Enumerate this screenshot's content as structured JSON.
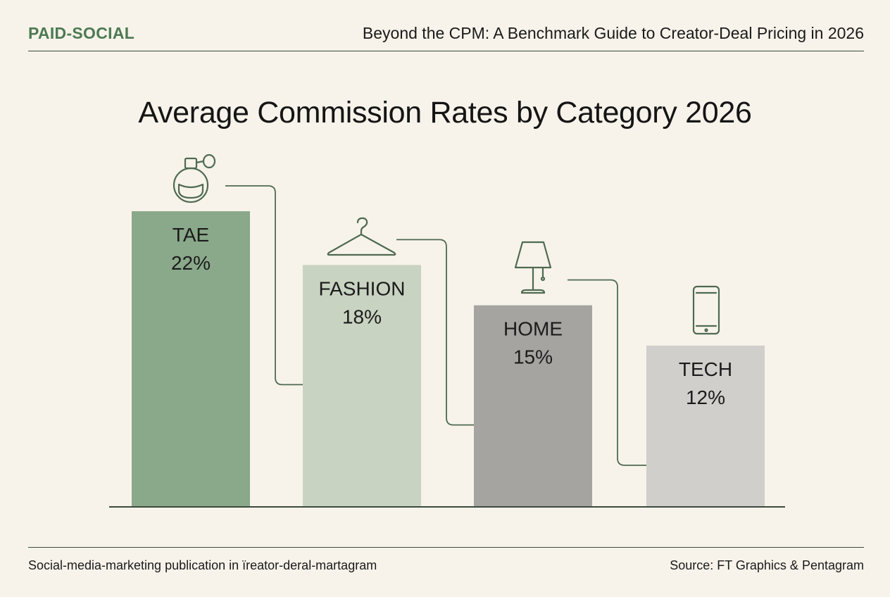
{
  "header": {
    "kicker": "PAID-SOCIAL",
    "headline": "Beyond the CPM: A Benchmark Guide to Creator-Deal Pricing in 2026"
  },
  "chart_data": {
    "type": "bar",
    "title": "Average Commission Rates by Category 2026",
    "categories": [
      "TAE",
      "FASHION",
      "HOME",
      "TECH"
    ],
    "values": [
      22,
      18,
      15,
      12
    ],
    "value_labels": [
      "22%",
      "18%",
      "15%",
      "12%"
    ],
    "value_unit": "%",
    "ylim": [
      0,
      22
    ],
    "grid": false,
    "legend": "none",
    "bar_colors": [
      "#8aa98a",
      "#c9d3c2",
      "#a5a4a0",
      "#d0cfcb"
    ],
    "category_icons": [
      "perfume-bottle-icon",
      "clothes-hanger-icon",
      "table-lamp-icon",
      "smartphone-icon"
    ]
  },
  "colors": {
    "background": "#f7f3ea",
    "accent": "#4c7a52",
    "rule": "#3c4a3e",
    "icon_line": "#4f6a52"
  },
  "footer": {
    "left": "Social-media-marketing publication in ïreator-deral-martagram",
    "right": "Source: FT Graphics & Pentagram"
  }
}
